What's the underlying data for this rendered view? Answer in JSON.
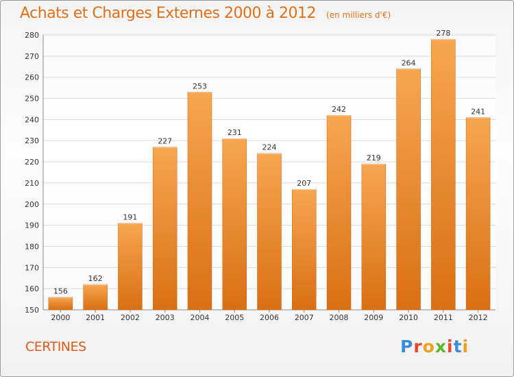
{
  "title": "Achats et Charges Externes 2000 à 2012",
  "subtitle": "(en milliers d'€)",
  "commune": "CERTINES",
  "logo": {
    "letters": [
      "P",
      "r",
      "o",
      "x",
      "i",
      "t",
      "i"
    ],
    "colors": [
      "#3a8fd8",
      "#e24a2a",
      "#f0a020",
      "#5cb82a",
      "#e24a2a",
      "#3a8fd8",
      "#f0a020"
    ]
  },
  "colors": {
    "bar_top": "#f7a650",
    "bar_bottom": "#d96f14",
    "bar_stroke": "#c76a1e",
    "text": "#333333"
  },
  "chart_data": {
    "type": "bar",
    "categories": [
      "2000",
      "2001",
      "2002",
      "2003",
      "2004",
      "2005",
      "2006",
      "2007",
      "2008",
      "2009",
      "2010",
      "2011",
      "2012"
    ],
    "values": [
      156,
      162,
      191,
      227,
      253,
      231,
      224,
      207,
      242,
      219,
      264,
      278,
      241
    ],
    "title": "Achats et Charges Externes 2000 à 2012",
    "ylim": [
      150,
      280
    ],
    "yticks": [
      150,
      160,
      170,
      180,
      190,
      200,
      210,
      220,
      230,
      240,
      250,
      260,
      270,
      280
    ],
    "grid": true,
    "data_labels": true
  }
}
